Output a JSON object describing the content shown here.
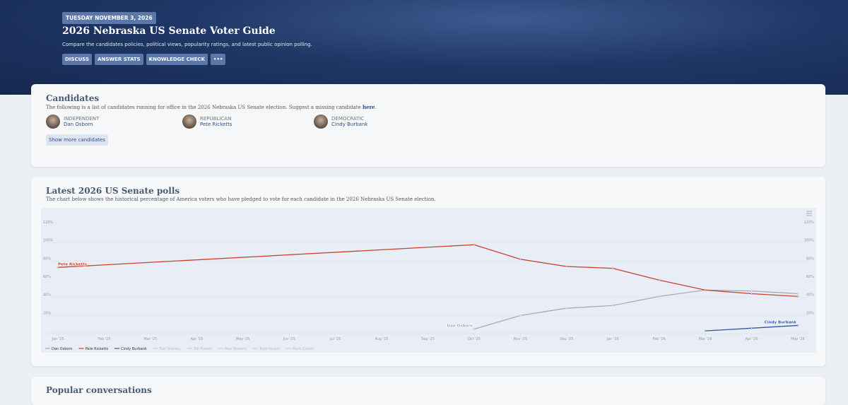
{
  "header": {
    "date": "TUESDAY NOVEMBER 3, 2026",
    "title": "2026 Nebraska US Senate Voter Guide",
    "subtitle": "Compare the candidates policies, political views, popularity ratings, and latest public opinion polling.",
    "buttons": [
      "DISCUSS",
      "ANSWER STATS",
      "KNOWLEDGE CHECK",
      "•••"
    ]
  },
  "candidates": {
    "title": "Candidates",
    "description": "The following is a list of candidates running for office in the 2026 Nebraska US Senate election. Suggest a missing candidate ",
    "link": "here",
    "description_end": ".",
    "items": [
      {
        "party": "INDEPENDENT",
        "name": "Dan Osborn"
      },
      {
        "party": "REPUBLICAN",
        "name": "Pete Ricketts"
      },
      {
        "party": "DEMOCRATIC",
        "name": "Cindy Burbank"
      }
    ],
    "more": "Show more candidates"
  },
  "polls": {
    "title": "Latest 2026 US Senate polls",
    "description": "The chart below shows the historical percentage of America voters who have pledged to vote for each candidate in the 2026 Nebraska US Senate election.",
    "chart_data": {
      "type": "line",
      "categories": [
        "Jan '25",
        "Feb '25",
        "Mar '25",
        "Apr '25",
        "May '25",
        "Jun '25",
        "Jul '25",
        "Aug '25",
        "Sep '25",
        "Oct '25",
        "Nov '25",
        "Dec '25",
        "Jan '26",
        "Feb '26",
        "Mar '26",
        "Apr '26",
        "May '26"
      ],
      "series": [
        {
          "name": "Dan Osborn",
          "color": "#a3acbf",
          "x": [
            "Oct '25",
            "Nov '25",
            "Dec '25",
            "Jan '26",
            "Feb '26",
            "Mar '26",
            "Apr '26",
            "May '26"
          ],
          "values": [
            5,
            20,
            28,
            31,
            41,
            48,
            47,
            44
          ]
        },
        {
          "name": "Pete Ricketts",
          "color": "#c8412d",
          "x": [
            "Jan '25",
            "Oct '25",
            "Nov '25",
            "Dec '25",
            "Jan '26",
            "Feb '26",
            "Mar '26",
            "Apr '26",
            "May '26"
          ],
          "values": [
            73,
            98,
            82,
            74,
            72,
            59,
            48,
            44,
            41
          ]
        },
        {
          "name": "Cindy Burbank",
          "color": "#2f57a6",
          "x": [
            "Mar '26",
            "Apr '26",
            "May '26"
          ],
          "values": [
            3,
            6,
            9
          ]
        }
      ],
      "inactive_legend": [
        "Earl Starkey",
        "Bill Forbes",
        "Max Sterens",
        "Todd Koskel",
        "Mark Colten"
      ],
      "ylim": [
        0,
        120
      ],
      "yticks": [
        {
          "value": 20,
          "label": "20%"
        },
        {
          "value": 40,
          "label": "40%"
        },
        {
          "value": 60,
          "label": "60%"
        },
        {
          "value": 80,
          "label": "80%"
        },
        {
          "value": 100,
          "label": "100%"
        },
        {
          "value": 120,
          "label": "120%"
        }
      ],
      "grid": true
    }
  },
  "next_section": {
    "title": "Popular conversations"
  }
}
